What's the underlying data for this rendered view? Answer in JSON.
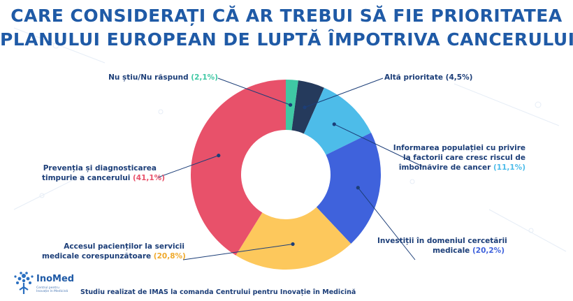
{
  "title": {
    "line1": "CARE CONSIDERAȚI CĂ AR TREBUI SĂ FIE PRIORITATEA",
    "line2": "PLANULUI EUROPEAN DE LUPTĂ ÎMPOTRIVA CANCERULUI?"
  },
  "labels": {
    "nu_stiu": {
      "text": "Nu știu/Nu răspund ",
      "pct": "(2,1%)"
    },
    "alta": {
      "text": "Altă prioritate ",
      "pct": "(4,5%)"
    },
    "informarea": {
      "line1": "Informarea populației cu privire",
      "line2": "la factorii care cresc riscul de",
      "line3": "îmbolnăvire de cancer ",
      "pct": "(11,1%)"
    },
    "investitii": {
      "line1": "Investiții în domeniul cercetării",
      "line2": "medicale ",
      "pct": "(20,2%)"
    },
    "accesul": {
      "line1": "Accesul pacienților la servicii",
      "line2": "medicale corespunzătoare ",
      "pct": "(20,8%)"
    },
    "preventia": {
      "line1": "Prevenția și diagnosticarea",
      "line2": "timpurie a cancerului ",
      "pct": "(41,1%)"
    }
  },
  "footer": "Studiu realizat de IMAS la comanda Centrului pentru Inovație în Medicină",
  "logo": {
    "name": "InoMed",
    "tagline": "Centrul pentru Inovație în Medicină"
  },
  "chart_data": {
    "type": "pie",
    "donut": true,
    "categories": [
      "Nu știu/Nu răspund",
      "Altă prioritate",
      "Informarea populației cu privire la factorii care cresc riscul de îmbolnăvire de cancer",
      "Investiții în domeniul cercetării medicale",
      "Accesul pacienților la servicii medicale corespunzătoare",
      "Prevenția și diagnosticarea timpurie a cancerului"
    ],
    "values": [
      2.1,
      4.5,
      11.1,
      20.2,
      20.8,
      41.1
    ],
    "colors": [
      "#3fc8a4",
      "#253a5c",
      "#4dbce9",
      "#3f62dc",
      "#fdc85c",
      "#e8516a"
    ],
    "label_colors": [
      "#3fc8a4",
      "#1c3e78",
      "#4dbce9",
      "#3f62dc",
      "#f0a92b",
      "#e8516a"
    ],
    "title": "CARE CONSIDERAȚI CĂ AR TREBUI SĂ FIE PRIORITATEA PLANULUI EUROPEAN DE LUPTĂ ÎMPOTRIVA CANCERULUI?"
  }
}
